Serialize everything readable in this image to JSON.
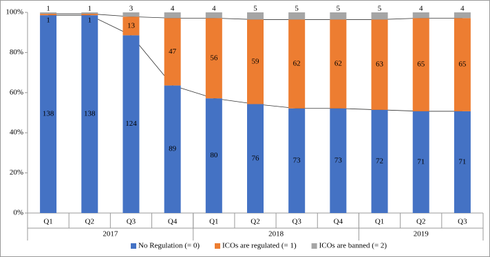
{
  "chart_data": {
    "type": "bar",
    "stacked": "percent",
    "categories": [
      "Q1",
      "Q2",
      "Q3",
      "Q4",
      "Q1",
      "Q2",
      "Q3",
      "Q4",
      "Q1",
      "Q2",
      "Q3"
    ],
    "x_groups": [
      "2017",
      "2018",
      "2019"
    ],
    "series": [
      {
        "name": "No Regulation (= 0)",
        "color": "#4472c4",
        "values": [
          138,
          138,
          124,
          89,
          80,
          76,
          73,
          73,
          72,
          71,
          71
        ]
      },
      {
        "name": "ICOs are regulated (= 1)",
        "color": "#ed7d31",
        "values": [
          1,
          1,
          13,
          47,
          56,
          59,
          62,
          62,
          63,
          65,
          65
        ]
      },
      {
        "name": "ICOs are banned (= 2)",
        "color": "#a5a5a5",
        "values": [
          1,
          1,
          3,
          4,
          4,
          5,
          5,
          5,
          5,
          4,
          4
        ]
      }
    ],
    "ylim": [
      0,
      100
    ],
    "yticks": [
      {
        "value": 0,
        "label": "0%"
      },
      {
        "value": 20,
        "label": "20%"
      },
      {
        "value": 40,
        "label": "40%"
      },
      {
        "value": 60,
        "label": "60%"
      },
      {
        "value": 80,
        "label": "80%"
      },
      {
        "value": 100,
        "label": "100%"
      }
    ],
    "grid": false,
    "series_lines": true,
    "legend": "bottom"
  }
}
